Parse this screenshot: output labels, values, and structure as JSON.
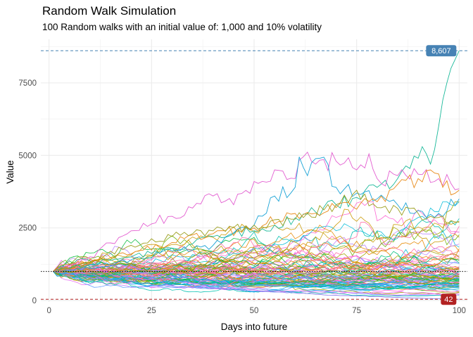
{
  "chart_data": {
    "type": "line",
    "title": "Random Walk Simulation",
    "subtitle": "100 Random walks with an initial value of: 1,000 and 10% volatility",
    "xlabel": "Days into future",
    "ylabel": "Value",
    "xlim": [
      -2,
      102
    ],
    "ylim": [
      -50,
      9000
    ],
    "xticks": [
      0,
      25,
      50,
      75,
      100
    ],
    "yticks": [
      0,
      2500,
      5000,
      7500
    ],
    "xtick_labels": [
      "0",
      "25",
      "50",
      "75",
      "100"
    ],
    "ytick_labels": [
      "0",
      "2500",
      "5000",
      "7500"
    ],
    "grid": true,
    "legend": "none",
    "n_series": 100,
    "days": 100,
    "initial_value": 1000,
    "volatility": 0.1,
    "reference_lines": [
      {
        "kind": "max",
        "value": 8607,
        "label": "8,607",
        "color": "#4682b4",
        "style": "dashed"
      },
      {
        "kind": "initial",
        "value": 1000,
        "color": "#000000",
        "style": "dotted"
      },
      {
        "kind": "min",
        "value": 42,
        "label": "42",
        "color": "#b22222",
        "style": "dashed"
      }
    ],
    "highlight_series": [
      {
        "name": "max-walk",
        "color": "#1bb99a",
        "points": [
          [
            1,
            1000
          ],
          [
            5,
            1120
          ],
          [
            10,
            1250
          ],
          [
            15,
            1380
          ],
          [
            20,
            1500
          ],
          [
            25,
            1620
          ],
          [
            30,
            1800
          ],
          [
            35,
            1950
          ],
          [
            40,
            2200
          ],
          [
            45,
            2300
          ],
          [
            50,
            2400
          ],
          [
            55,
            2600
          ],
          [
            60,
            2850
          ],
          [
            65,
            3050
          ],
          [
            70,
            3300
          ],
          [
            75,
            3550
          ],
          [
            80,
            3900
          ],
          [
            85,
            4200
          ],
          [
            88,
            4550
          ],
          [
            90,
            4900
          ],
          [
            91,
            5300
          ],
          [
            92,
            5050
          ],
          [
            93,
            4700
          ],
          [
            94,
            5200
          ],
          [
            95,
            6000
          ],
          [
            96,
            6900
          ],
          [
            97,
            7500
          ],
          [
            98,
            8000
          ],
          [
            99,
            8300
          ],
          [
            100,
            8607
          ]
        ]
      },
      {
        "name": "pink-high",
        "color": "#e35fd1",
        "points": [
          [
            1,
            1000
          ],
          [
            10,
            1500
          ],
          [
            20,
            2400
          ],
          [
            30,
            2900
          ],
          [
            40,
            3600
          ],
          [
            45,
            3300
          ],
          [
            50,
            4100
          ],
          [
            55,
            4500
          ],
          [
            60,
            4200
          ],
          [
            62,
            4950
          ],
          [
            65,
            4700
          ],
          [
            70,
            4800
          ],
          [
            75,
            4500
          ],
          [
            78,
            5050
          ],
          [
            80,
            4200
          ],
          [
            85,
            4300
          ],
          [
            90,
            4350
          ],
          [
            95,
            4200
          ],
          [
            100,
            3850
          ]
        ]
      },
      {
        "name": "blue-high",
        "color": "#1aa3d6",
        "points": [
          [
            1,
            1000
          ],
          [
            10,
            1100
          ],
          [
            20,
            1400
          ],
          [
            30,
            1700
          ],
          [
            40,
            1900
          ],
          [
            50,
            2600
          ],
          [
            55,
            3600
          ],
          [
            60,
            3900
          ],
          [
            61,
            4950
          ],
          [
            63,
            4300
          ],
          [
            66,
            4900
          ],
          [
            70,
            3900
          ],
          [
            75,
            3700
          ],
          [
            80,
            3500
          ],
          [
            85,
            3300
          ],
          [
            90,
            3100
          ],
          [
            95,
            3000
          ],
          [
            100,
            3500
          ]
        ]
      },
      {
        "name": "orange-high",
        "color": "#e88b1a",
        "points": [
          [
            1,
            1000
          ],
          [
            10,
            1300
          ],
          [
            20,
            1600
          ],
          [
            30,
            2000
          ],
          [
            40,
            2300
          ],
          [
            50,
            2500
          ],
          [
            60,
            3000
          ],
          [
            70,
            3200
          ],
          [
            80,
            3400
          ],
          [
            85,
            4000
          ],
          [
            90,
            4200
          ],
          [
            93,
            4500
          ],
          [
            96,
            3900
          ],
          [
            100,
            3800
          ]
        ]
      },
      {
        "name": "olive-mid",
        "color": "#9b9e1c",
        "points": [
          [
            1,
            1000
          ],
          [
            10,
            1300
          ],
          [
            20,
            1900
          ],
          [
            30,
            2200
          ],
          [
            40,
            2400
          ],
          [
            50,
            2600
          ],
          [
            60,
            2800
          ],
          [
            70,
            3300
          ],
          [
            75,
            3800
          ],
          [
            80,
            3200
          ],
          [
            90,
            3000
          ],
          [
            100,
            2700
          ]
        ]
      },
      {
        "name": "min-walk",
        "color": "#8b7ff0",
        "points": [
          [
            1,
            1000
          ],
          [
            10,
            800
          ],
          [
            20,
            650
          ],
          [
            30,
            500
          ],
          [
            40,
            420
          ],
          [
            50,
            330
          ],
          [
            60,
            260
          ],
          [
            70,
            180
          ],
          [
            80,
            130
          ],
          [
            90,
            80
          ],
          [
            100,
            42
          ]
        ]
      }
    ],
    "x_range": [
      1,
      100
    ],
    "max_value": 8607,
    "min_value": 42
  }
}
